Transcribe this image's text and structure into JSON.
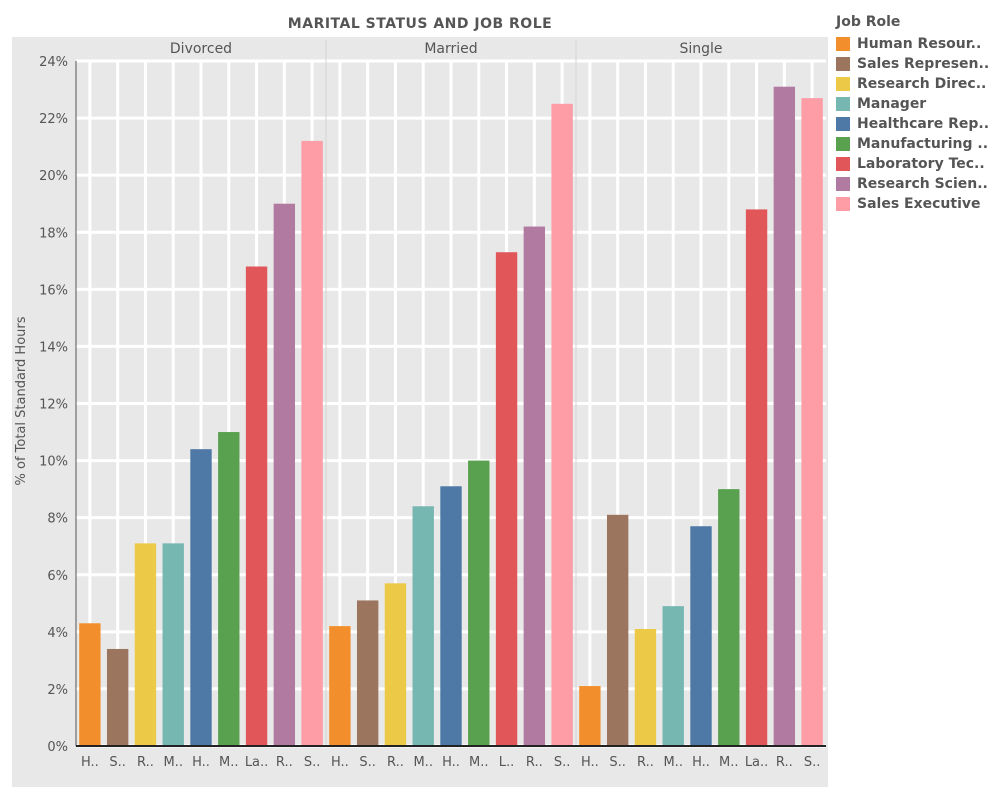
{
  "chart_data": {
    "type": "bar",
    "title": "MARITAL STATUS AND JOB ROLE",
    "ylabel": "% of Total Standard Hours",
    "xlabel": "",
    "ylim": [
      0,
      24
    ],
    "y_ticks": [
      "0%",
      "2%",
      "4%",
      "6%",
      "8%",
      "10%",
      "12%",
      "14%",
      "16%",
      "18%",
      "20%",
      "22%",
      "24%"
    ],
    "grid": true,
    "legend": {
      "title": "Job Role",
      "position": "right",
      "entries": [
        {
          "label": "Human Resour..",
          "color": "#F28E2B"
        },
        {
          "label": "Sales Represen..",
          "color": "#9C755F"
        },
        {
          "label": "Research Direc..",
          "color": "#EDC948"
        },
        {
          "label": "Manager",
          "color": "#76B7B2"
        },
        {
          "label": "Healthcare Rep..",
          "color": "#4E79A7"
        },
        {
          "label": "Manufacturing ..",
          "color": "#59A14F"
        },
        {
          "label": "Laboratory Tec..",
          "color": "#E15759"
        },
        {
          "label": "Research Scien..",
          "color": "#B07AA1"
        },
        {
          "label": "Sales Executive",
          "color": "#FF9DA7"
        }
      ]
    },
    "panels": [
      {
        "name": "Divorced",
        "categories": [
          "H..",
          "S..",
          "R..",
          "M..",
          "H..",
          "M..",
          "La..",
          "R..",
          "S.."
        ],
        "values": [
          4.3,
          3.4,
          7.1,
          7.1,
          10.4,
          11.0,
          16.8,
          19.0,
          21.2
        ]
      },
      {
        "name": "Married",
        "categories": [
          "H..",
          "S..",
          "R..",
          "M..",
          "H..",
          "M..",
          "L..",
          "R..",
          "S.."
        ],
        "values": [
          4.2,
          5.1,
          5.7,
          8.4,
          9.1,
          10.0,
          17.3,
          18.2,
          22.5
        ]
      },
      {
        "name": "Single",
        "categories": [
          "H..",
          "S..",
          "R..",
          "M..",
          "H..",
          "M..",
          "La..",
          "R..",
          "S.."
        ],
        "values": [
          2.1,
          8.1,
          4.1,
          4.9,
          7.7,
          9.0,
          18.8,
          23.1,
          22.7
        ]
      }
    ]
  }
}
